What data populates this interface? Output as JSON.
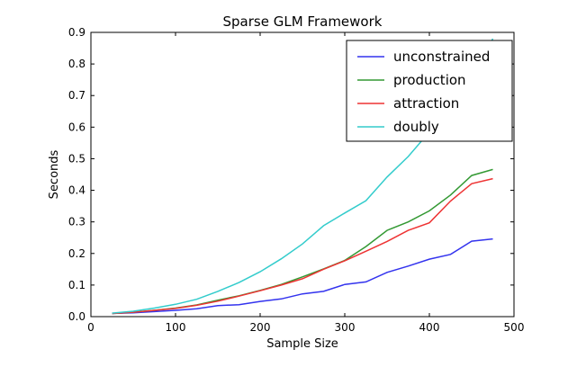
{
  "chart_data": {
    "type": "line",
    "title": "Sparse GLM Framework",
    "xlabel": "Sample Size",
    "ylabel": "Seconds",
    "xlim": [
      0,
      500
    ],
    "ylim": [
      0,
      0.9
    ],
    "xticks": [
      "0",
      "100",
      "200",
      "300",
      "400",
      "500"
    ],
    "yticks": [
      "0.0",
      "0.1",
      "0.2",
      "0.3",
      "0.4",
      "0.5",
      "0.6",
      "0.7",
      "0.8",
      "0.9"
    ],
    "grid": false,
    "legend_position": "top-right",
    "x": [
      25,
      50,
      75,
      100,
      125,
      150,
      175,
      200,
      225,
      250,
      275,
      300,
      325,
      350,
      375,
      400,
      425,
      450,
      475
    ],
    "series": [
      {
        "name": "unconstrained",
        "color": "#3333ee",
        "values": [
          0.01,
          0.012,
          0.016,
          0.02,
          0.025,
          0.035,
          0.038,
          0.048,
          0.056,
          0.072,
          0.08,
          0.102,
          0.11,
          0.14,
          0.16,
          0.182,
          0.197,
          0.239,
          0.246
        ]
      },
      {
        "name": "production",
        "color": "#339933",
        "values": [
          0.01,
          0.014,
          0.02,
          0.027,
          0.037,
          0.052,
          0.066,
          0.083,
          0.102,
          0.126,
          0.151,
          0.178,
          0.222,
          0.273,
          0.3,
          0.335,
          0.385,
          0.447,
          0.466
        ]
      },
      {
        "name": "attraction",
        "color": "#ee3333",
        "values": [
          0.01,
          0.014,
          0.02,
          0.026,
          0.036,
          0.049,
          0.065,
          0.082,
          0.1,
          0.12,
          0.15,
          0.177,
          0.207,
          0.238,
          0.273,
          0.297,
          0.366,
          0.421,
          0.437
        ]
      },
      {
        "name": "doubly",
        "color": "#33cccc",
        "values": [
          0.011,
          0.017,
          0.027,
          0.039,
          0.055,
          0.08,
          0.108,
          0.142,
          0.183,
          0.23,
          0.288,
          0.328,
          0.367,
          0.442,
          0.507,
          0.585,
          0.65,
          0.76,
          0.88
        ]
      }
    ]
  }
}
